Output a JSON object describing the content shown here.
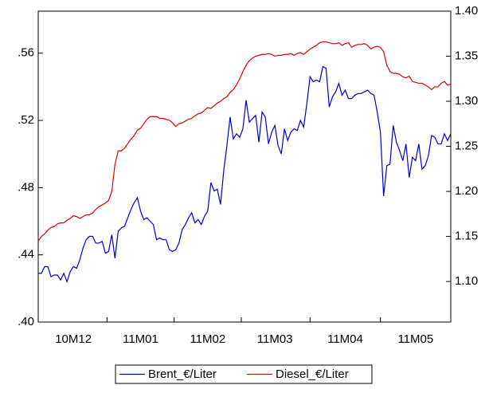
{
  "chart_data": {
    "type": "line",
    "categories": [
      null,
      null,
      null,
      null,
      null,
      null,
      null,
      null,
      null,
      null,
      null,
      "10M12",
      null,
      null,
      null,
      null,
      null,
      null,
      null,
      null,
      null,
      null,
      null,
      null,
      null,
      null,
      null,
      null,
      null,
      null,
      null,
      null,
      "11M01",
      null,
      null,
      null,
      null,
      null,
      null,
      null,
      null,
      null,
      null,
      null,
      null,
      null,
      null,
      null,
      null,
      null,
      null,
      null,
      null,
      "11M02",
      null,
      null,
      null,
      null,
      null,
      null,
      null,
      null,
      null,
      null,
      null,
      null,
      null,
      null,
      null,
      null,
      null,
      null,
      null,
      null,
      "11M03",
      null,
      null,
      null,
      null,
      null,
      null,
      null,
      null,
      null,
      null,
      null,
      null,
      null,
      null,
      null,
      null,
      null,
      null,
      null,
      null,
      null,
      "11M04",
      null,
      null,
      null,
      null,
      null,
      null,
      null,
      null,
      null,
      null,
      null,
      null,
      null,
      null,
      null,
      null,
      null,
      null,
      null,
      null,
      null,
      "11M05",
      null,
      null,
      null,
      null,
      null,
      null,
      null,
      null,
      null,
      null,
      null
    ],
    "series": [
      {
        "name": "Brent_€/Liter",
        "color": "#0000cc",
        "axis": "y",
        "values": [
          0.429,
          0.429,
          0.433,
          0.433,
          0.427,
          0.428,
          0.428,
          0.425,
          0.429,
          0.424,
          0.43,
          0.433,
          0.432,
          0.437,
          0.444,
          0.449,
          0.451,
          0.451,
          0.447,
          0.447,
          0.448,
          0.441,
          0.442,
          0.452,
          0.438,
          0.454,
          0.456,
          0.457,
          0.462,
          0.467,
          0.471,
          0.474,
          0.466,
          0.461,
          0.462,
          0.46,
          0.458,
          0.449,
          0.45,
          0.449,
          0.449,
          0.443,
          0.442,
          0.443,
          0.447,
          0.455,
          0.458,
          0.462,
          0.465,
          0.459,
          0.461,
          0.458,
          0.463,
          0.466,
          0.483,
          0.478,
          0.479,
          0.47,
          0.49,
          0.505,
          0.522,
          0.509,
          0.512,
          0.51,
          0.515,
          0.532,
          0.519,
          0.521,
          0.523,
          0.507,
          0.525,
          0.522,
          0.506,
          0.513,
          0.517,
          0.505,
          0.5,
          0.515,
          0.508,
          0.513,
          0.515,
          0.514,
          0.52,
          0.516,
          0.53,
          0.546,
          0.543,
          0.544,
          0.543,
          0.552,
          0.551,
          0.528,
          0.534,
          0.537,
          0.542,
          0.535,
          0.538,
          0.533,
          0.533,
          0.535,
          0.536,
          0.536,
          0.537,
          0.538,
          0.536,
          0.535,
          0.525,
          0.513,
          0.475,
          0.493,
          0.494,
          0.517,
          0.507,
          0.502,
          0.496,
          0.506,
          0.486,
          0.498,
          0.496,
          0.506,
          0.491,
          0.493,
          0.499,
          0.511,
          0.51,
          0.506,
          0.506,
          0.512,
          0.508,
          0.512
        ]
      },
      {
        "name": "Diesel_€/Liter",
        "color": "#dd0000",
        "axis": "y2",
        "values": [
          1.145,
          1.15,
          1.153,
          1.157,
          1.16,
          1.161,
          1.164,
          1.165,
          1.165,
          1.168,
          1.17,
          1.173,
          1.172,
          1.17,
          1.172,
          1.174,
          1.174,
          1.176,
          1.18,
          1.183,
          1.185,
          1.187,
          1.19,
          1.2,
          1.23,
          1.245,
          1.245,
          1.248,
          1.253,
          1.258,
          1.262,
          1.268,
          1.27,
          1.275,
          1.28,
          1.283,
          1.283,
          1.283,
          1.281,
          1.281,
          1.28,
          1.279,
          1.276,
          1.272,
          1.275,
          1.276,
          1.278,
          1.28,
          1.281,
          1.284,
          1.286,
          1.287,
          1.29,
          1.293,
          1.292,
          1.295,
          1.298,
          1.3,
          1.303,
          1.305,
          1.31,
          1.313,
          1.318,
          1.325,
          1.333,
          1.34,
          1.345,
          1.348,
          1.35,
          1.351,
          1.352,
          1.352,
          1.353,
          1.352,
          1.35,
          1.351,
          1.351,
          1.352,
          1.352,
          1.353,
          1.351,
          1.353,
          1.354,
          1.352,
          1.355,
          1.358,
          1.36,
          1.362,
          1.365,
          1.366,
          1.366,
          1.365,
          1.364,
          1.364,
          1.365,
          1.362,
          1.364,
          1.365,
          1.36,
          1.362,
          1.363,
          1.363,
          1.364,
          1.362,
          1.358,
          1.36,
          1.361,
          1.36,
          1.355,
          1.34,
          1.333,
          1.331,
          1.331,
          1.33,
          1.327,
          1.326,
          1.328,
          1.322,
          1.321,
          1.32,
          1.32,
          1.318,
          1.316,
          1.313,
          1.316,
          1.316,
          1.32,
          1.322,
          1.318,
          1.319
        ]
      }
    ],
    "ylim": [
      0.4,
      0.585
    ],
    "yticks": [
      {
        "value": 0.4,
        "label": ".40"
      },
      {
        "value": 0.44,
        "label": ".44"
      },
      {
        "value": 0.48,
        "label": ".48"
      },
      {
        "value": 0.52,
        "label": ".52"
      },
      {
        "value": 0.56,
        "label": ".56"
      }
    ],
    "y2lim": [
      1.055,
      1.4
    ],
    "y2ticks": [
      {
        "value": 1.1,
        "label": "1.10"
      },
      1.15,
      {
        "value": 1.2,
        "label": "1.20"
      },
      1.25,
      {
        "value": 1.3,
        "label": "1.30"
      },
      1.35,
      {
        "value": 1.4,
        "label": "1.40"
      }
    ],
    "grid": false,
    "legend": "bottom"
  }
}
